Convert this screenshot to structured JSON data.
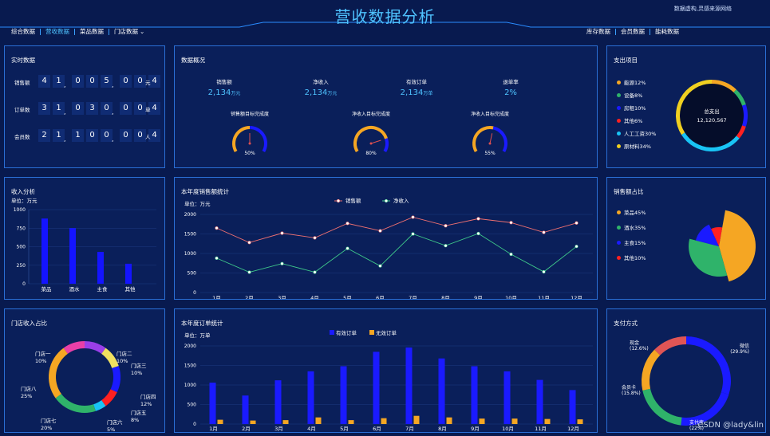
{
  "header": {
    "title": "营收数据分析",
    "note": "数据虚构,灵感来源网络"
  },
  "nav_left": [
    "综合数据",
    "营收数据",
    "菜品数据",
    "门店数据"
  ],
  "nav_right": [
    "库存数据",
    "会员数据",
    "能耗数据"
  ],
  "realtime": {
    "title": "实时数据",
    "rows": [
      {
        "label": "销售额",
        "digits": [
          "4",
          "1",
          "0",
          "0",
          "5",
          "0",
          "0",
          "4"
        ],
        "unit": "元"
      },
      {
        "label": "订单数",
        "digits": [
          "3",
          "1",
          "0",
          "3",
          "0",
          "0",
          "0",
          "4"
        ],
        "unit": "单"
      },
      {
        "label": "会员数",
        "digits": [
          "2",
          "1",
          "1",
          "0",
          "0",
          "0",
          "0",
          "4"
        ],
        "unit": "人"
      }
    ]
  },
  "overview": {
    "title": "数据概况",
    "stats": [
      {
        "label": "销售额",
        "value": "2,134",
        "unit": "万元"
      },
      {
        "label": "净收入",
        "value": "2,134",
        "unit": "万元"
      },
      {
        "label": "有效订单",
        "value": "2,134",
        "unit": "万单"
      },
      {
        "label": "退单率",
        "value": "2%",
        "unit": ""
      }
    ],
    "gauges": [
      {
        "label": "销售额目标完成度",
        "value": 50,
        "text": "50%"
      },
      {
        "label": "净收入目标完成度",
        "value": 80,
        "text": "80%"
      },
      {
        "label": "净收入目标完成度",
        "value": 55,
        "text": "55%"
      }
    ]
  },
  "expense": {
    "title": "支出项目",
    "center_label": "总支出",
    "center_value": "12,120,567",
    "items": [
      {
        "label": "能源12%",
        "color": "#f5a623",
        "value": 12
      },
      {
        "label": "设备8%",
        "color": "#2fb36a",
        "value": 8
      },
      {
        "label": "房租10%",
        "color": "#1a1aff",
        "value": 10
      },
      {
        "label": "其他6%",
        "color": "#ff2020",
        "value": 6
      },
      {
        "label": "人工工资30%",
        "color": "#19c4f5",
        "value": 30
      },
      {
        "label": "原材料34%",
        "color": "#f0d020",
        "value": 34
      }
    ]
  },
  "income": {
    "title": "收入分析",
    "unit_label": "单位：万元",
    "chart_data": {
      "type": "bar",
      "categories": [
        "菜品",
        "酒水",
        "主食",
        "其他"
      ],
      "values": [
        880,
        750,
        430,
        270
      ],
      "ylim": [
        0,
        1000
      ],
      "yticks": [
        0,
        250,
        500,
        750,
        1000
      ]
    }
  },
  "sales": {
    "title": "本年度销售额统计",
    "unit_label": "单位：万元",
    "chart_data": {
      "type": "line",
      "categories": [
        "1月",
        "2月",
        "3月",
        "4月",
        "5月",
        "6月",
        "7月",
        "8月",
        "9月",
        "10月",
        "11月",
        "12月"
      ],
      "series": [
        {
          "name": "销售额",
          "color": "#f07070",
          "values": [
            1650,
            1280,
            1520,
            1400,
            1770,
            1580,
            1930,
            1710,
            1890,
            1790,
            1540,
            1780
          ]
        },
        {
          "name": "净收入",
          "color": "#3fc98a",
          "values": [
            880,
            520,
            740,
            520,
            1130,
            680,
            1500,
            1200,
            1510,
            980,
            530,
            1180
          ]
        }
      ],
      "ylim": [
        0,
        2000
      ],
      "yticks": [
        0,
        500,
        1000,
        1500,
        2000
      ]
    }
  },
  "share": {
    "title": "销售额占比",
    "items": [
      {
        "label": "菜品45%",
        "color": "#f5a623",
        "value": 45
      },
      {
        "label": "酒水35%",
        "color": "#2fb36a",
        "value": 35
      },
      {
        "label": "主食15%",
        "color": "#1a1aff",
        "value": 15
      },
      {
        "label": "其他10%",
        "color": "#ff2020",
        "value": 10
      }
    ]
  },
  "orders": {
    "title": "本年度订单统计",
    "unit_label": "单位：万单",
    "chart_data": {
      "type": "bar",
      "categories": [
        "1月",
        "2月",
        "3月",
        "4月",
        "5月",
        "6月",
        "7月",
        "8月",
        "9月",
        "10月",
        "11月",
        "12月"
      ],
      "series": [
        {
          "name": "有效订单",
          "color": "#1a1aff",
          "values": [
            1060,
            730,
            1120,
            1350,
            1480,
            1850,
            1960,
            1680,
            1480,
            1350,
            1130,
            870
          ]
        },
        {
          "name": "无效订单",
          "color": "#f5a623",
          "values": [
            110,
            90,
            100,
            170,
            100,
            150,
            210,
            170,
            140,
            140,
            130,
            120
          ]
        }
      ],
      "ylim": [
        0,
        2000
      ],
      "yticks": [
        0,
        500,
        1000,
        1500,
        2000
      ]
    }
  },
  "store": {
    "title": "门店收入占比",
    "items": [
      {
        "name": "门店一",
        "pct": "10%",
        "color": "#e83fa8",
        "value": 10
      },
      {
        "name": "门店二",
        "pct": "10%",
        "color": "#9a3fe8",
        "value": 10
      },
      {
        "name": "门店三",
        "pct": "10%",
        "color": "#f0e060",
        "value": 10
      },
      {
        "name": "门店四",
        "pct": "12%",
        "color": "#1a1aff",
        "value": 12
      },
      {
        "name": "门店五",
        "pct": "8%",
        "color": "#ff2020",
        "value": 8
      },
      {
        "name": "门店六",
        "pct": "5%",
        "color": "#19c4f5",
        "value": 5
      },
      {
        "name": "门店七",
        "pct": "20%",
        "color": "#2fb36a",
        "value": 20
      },
      {
        "name": "门店八",
        "pct": "25%",
        "color": "#f5a623",
        "value": 25
      }
    ]
  },
  "payment": {
    "title": "支付方式",
    "items": [
      {
        "name": "微信",
        "pct": "(29.9%)",
        "color": "#1a1aff",
        "value": 29.9
      },
      {
        "name": "支付宝",
        "pct": "(22%)",
        "color": "#1a1aff",
        "value": 22
      },
      {
        "name": "会员卡",
        "pct": "(15.8%)",
        "color": "#f5a623",
        "value": 15.8
      },
      {
        "name": "现金",
        "pct": "(12.6%)",
        "color": "#e05555",
        "value": 12.6
      },
      {
        "name": "其他",
        "pct": "",
        "color": "#2fb36a",
        "value": 19.7
      }
    ]
  },
  "watermark": "CSDN @lady&lin"
}
